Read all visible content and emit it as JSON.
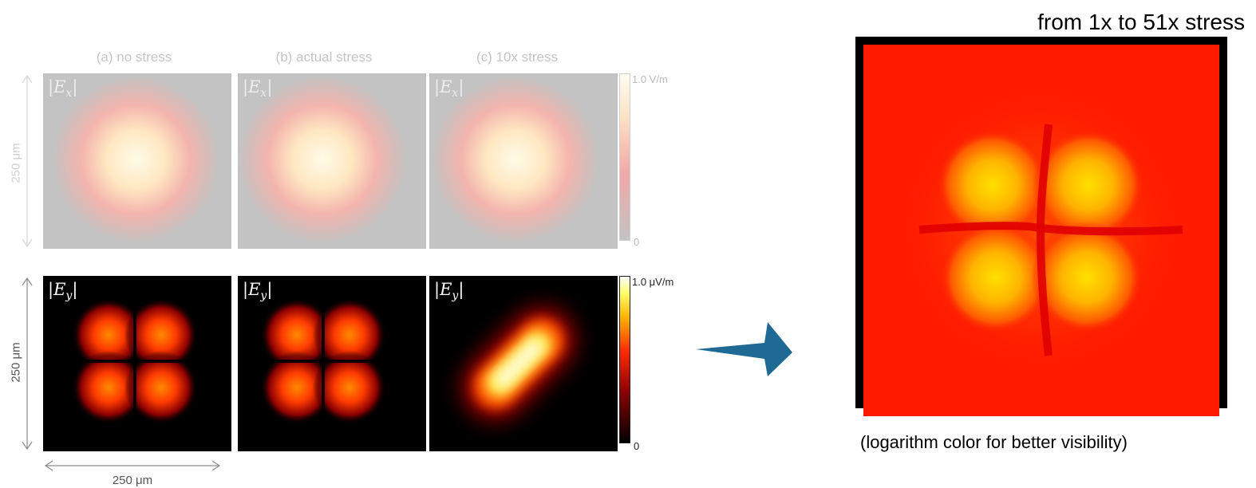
{
  "columns": [
    {
      "id": "a",
      "title": "(a) no stress"
    },
    {
      "id": "b",
      "title": "(b) actual stress"
    },
    {
      "id": "c",
      "title": "(c) 10x stress"
    }
  ],
  "rows": [
    {
      "component": "|E",
      "sub": "x",
      "close": "|"
    },
    {
      "component": "|E",
      "sub": "y",
      "close": "|"
    }
  ],
  "colorbars": {
    "top": {
      "max": "1.0 V/m",
      "min": "0"
    },
    "bottom": {
      "max": "1.0 μV/m",
      "min": "0"
    }
  },
  "dimensions": {
    "height_top": "250 μm",
    "height_bottom": "250 μm",
    "width": "250 μm"
  },
  "result": {
    "title": "from 1x to 51x stress",
    "caption": "(logarithm color for better visibility)"
  },
  "colors": {
    "arrow": "#1f6a94",
    "hot_red": "#ff1a00",
    "hot_yellow": "#ffe600",
    "panel_gray": "#c3c3c3"
  }
}
